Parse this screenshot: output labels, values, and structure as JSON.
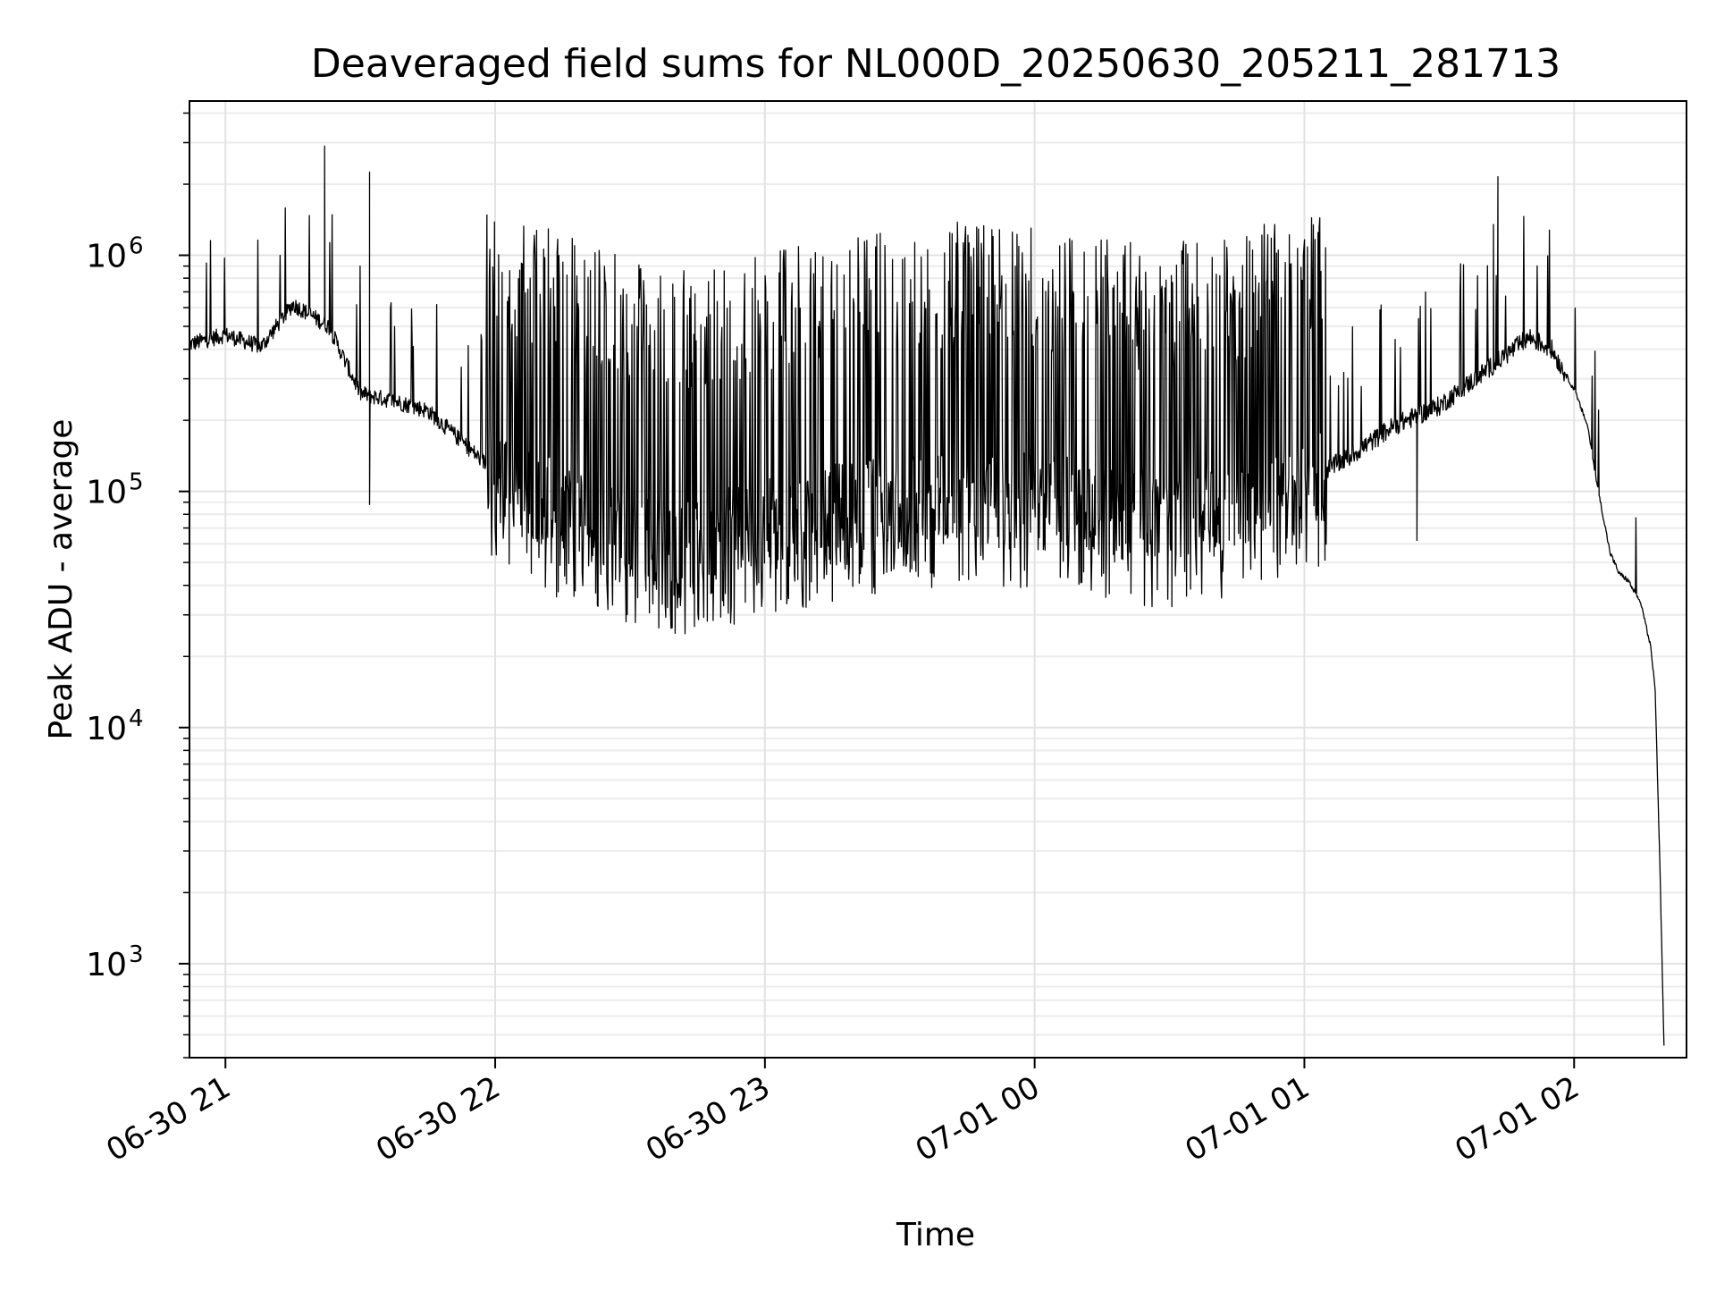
{
  "chart_data": {
    "type": "line",
    "title": "Deaveraged field sums for NL000D_20250630_205211_281713",
    "xlabel": "Time",
    "ylabel": "Peak ADU - average",
    "yscale": "log",
    "ylim": [
      400,
      4500000
    ],
    "xlim": [
      "06-30 20:52",
      "07-01 02:25"
    ],
    "grid": true,
    "x_ticks": [
      "06-30 21",
      "06-30 22",
      "06-30 23",
      "07-01 00",
      "07-01 01",
      "07-01 02"
    ],
    "y_ticks": [
      {
        "base": "10",
        "exp": "3",
        "value": 1000
      },
      {
        "base": "10",
        "exp": "4",
        "value": 10000
      },
      {
        "base": "10",
        "exp": "5",
        "value": 100000
      },
      {
        "base": "10",
        "exp": "6",
        "value": 1000000
      }
    ],
    "line_color": "#000000",
    "series": [
      {
        "x": [
          "06-30 20:52",
          "06-30 21:00",
          "06-30 21:08",
          "06-30 21:15",
          "06-30 21:23",
          "06-30 21:30",
          "06-30 21:38",
          "06-30 21:45",
          "06-30 21:53",
          "06-30 22:00",
          "06-30 22:10",
          "06-30 22:20",
          "06-30 22:30",
          "06-30 22:40",
          "06-30 22:50",
          "06-30 23:00",
          "06-30 23:15",
          "06-30 23:30",
          "06-30 23:45",
          "07-01 00:00",
          "07-01 00:15",
          "07-01 00:30",
          "07-01 00:45",
          "07-01 01:00",
          "07-01 01:10",
          "07-01 01:20",
          "07-01 01:30",
          "07-01 01:38",
          "07-01 01:45",
          "07-01 01:50",
          "07-01 01:55",
          "07-01 02:00",
          "07-01 02:03",
          "07-01 02:05",
          "07-01 02:08",
          "07-01 02:10",
          "07-01 02:12",
          "07-01 02:15",
          "07-01 02:17",
          "07-01 02:18",
          "07-01 02:19",
          "07-01 02:20"
        ],
        "y": [
          420000,
          460000,
          410000,
          620000,
          500000,
          260000,
          240000,
          220000,
          160000,
          120000,
          95000,
          80000,
          68000,
          62000,
          65000,
          75000,
          85000,
          95000,
          100000,
          95000,
          85000,
          80000,
          90000,
          110000,
          140000,
          190000,
          230000,
          300000,
          380000,
          450000,
          400000,
          270000,
          190000,
          110000,
          55000,
          45000,
          42000,
          33000,
          22000,
          15000,
          3000,
          450
        ]
      }
    ],
    "spikes": [
      {
        "x": "06-30 21:22",
        "y": 2900000
      },
      {
        "x": "06-30 21:32",
        "y": 2250000
      },
      {
        "x": "06-30 21:32",
        "y": 88000
      },
      {
        "x": "07-01 01:43",
        "y": 2150000
      },
      {
        "x": "07-01 01:42",
        "y": 1350000
      },
      {
        "x": "06-30 22:07",
        "y": 55000
      },
      {
        "x": "07-01 01:25",
        "y": 62000
      }
    ]
  }
}
